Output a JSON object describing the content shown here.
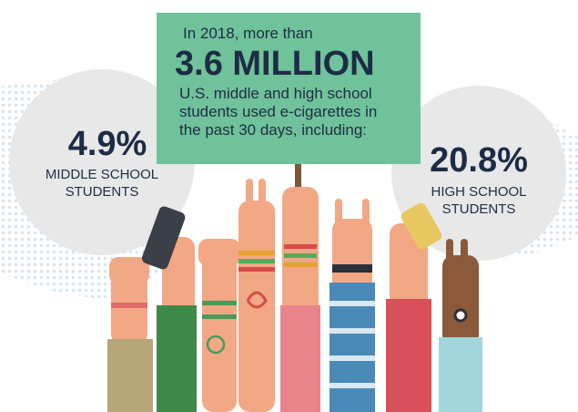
{
  "sign": {
    "intro": "In 2018, more than",
    "headline": "3.6 MILLION",
    "body": [
      "U.S. middle and high school",
      "students used e-cigarettes in",
      "the past 30 days, including:"
    ]
  },
  "middle_school": {
    "value": "4.9%",
    "label": [
      "MIDDLE SCHOOL",
      "STUDENTS"
    ]
  },
  "high_school": {
    "value": "20.8%",
    "label": [
      "HIGH SCHOOL",
      "STUDENTS"
    ]
  }
}
